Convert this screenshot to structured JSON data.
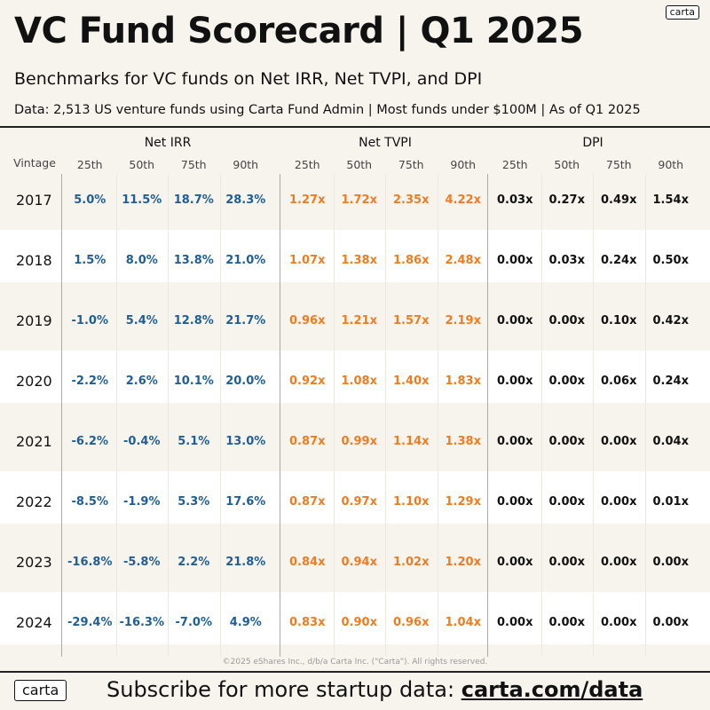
{
  "brand_badge": "carta",
  "header": {
    "title": "VC Fund Scorecard | Q1 2025",
    "subtitle": "Benchmarks for VC funds on Net IRR, Net TVPI, and DPI",
    "source": "Data: 2,513 US venture funds using Carta Fund Admin | Most funds under $100M | As of Q1 2025"
  },
  "colors": {
    "irr": "#1f5e96",
    "tvpi": "#f07c22",
    "dpi": "#111111",
    "band": "#ffffff",
    "background": "#f7f4ee"
  },
  "chart_data": {
    "type": "table",
    "row_header": "Vintage",
    "percentiles": [
      "25th",
      "50th",
      "75th",
      "90th"
    ],
    "groups": [
      {
        "name": "Net IRR",
        "key": "irr",
        "values": [
          [
            "5.0%",
            "11.5%",
            "18.7%",
            "28.3%"
          ],
          [
            "1.5%",
            "8.0%",
            "13.8%",
            "21.0%"
          ],
          [
            "-1.0%",
            "5.4%",
            "12.8%",
            "21.7%"
          ],
          [
            "-2.2%",
            "2.6%",
            "10.1%",
            "20.0%"
          ],
          [
            "-6.2%",
            "-0.4%",
            "5.1%",
            "13.0%"
          ],
          [
            "-8.5%",
            "-1.9%",
            "5.3%",
            "17.6%"
          ],
          [
            "-16.8%",
            "-5.8%",
            "2.2%",
            "21.8%"
          ],
          [
            "-29.4%",
            "-16.3%",
            "-7.0%",
            "4.9%"
          ]
        ]
      },
      {
        "name": "Net TVPI",
        "key": "tvpi",
        "values": [
          [
            "1.27x",
            "1.72x",
            "2.35x",
            "4.22x"
          ],
          [
            "1.07x",
            "1.38x",
            "1.86x",
            "2.48x"
          ],
          [
            "0.96x",
            "1.21x",
            "1.57x",
            "2.19x"
          ],
          [
            "0.92x",
            "1.08x",
            "1.40x",
            "1.83x"
          ],
          [
            "0.87x",
            "0.99x",
            "1.14x",
            "1.38x"
          ],
          [
            "0.87x",
            "0.97x",
            "1.10x",
            "1.29x"
          ],
          [
            "0.84x",
            "0.94x",
            "1.02x",
            "1.20x"
          ],
          [
            "0.83x",
            "0.90x",
            "0.96x",
            "1.04x"
          ]
        ]
      },
      {
        "name": "DPI",
        "key": "dpi",
        "values": [
          [
            "0.03x",
            "0.27x",
            "0.49x",
            "1.54x"
          ],
          [
            "0.00x",
            "0.03x",
            "0.24x",
            "0.50x"
          ],
          [
            "0.00x",
            "0.00x",
            "0.10x",
            "0.42x"
          ],
          [
            "0.00x",
            "0.00x",
            "0.06x",
            "0.24x"
          ],
          [
            "0.00x",
            "0.00x",
            "0.00x",
            "0.04x"
          ],
          [
            "0.00x",
            "0.00x",
            "0.00x",
            "0.01x"
          ],
          [
            "0.00x",
            "0.00x",
            "0.00x",
            "0.00x"
          ],
          [
            "0.00x",
            "0.00x",
            "0.00x",
            "0.00x"
          ]
        ]
      }
    ],
    "vintages": [
      "2017",
      "2018",
      "2019",
      "2020",
      "2021",
      "2022",
      "2023",
      "2024"
    ]
  },
  "copyright": "©2025 eShares Inc., d/b/a Carta Inc. (\"Carta\"). All rights reserved.",
  "footer": {
    "logo": "carta",
    "cta_text": "Subscribe for more startup data: ",
    "cta_link": "carta.com/data"
  }
}
